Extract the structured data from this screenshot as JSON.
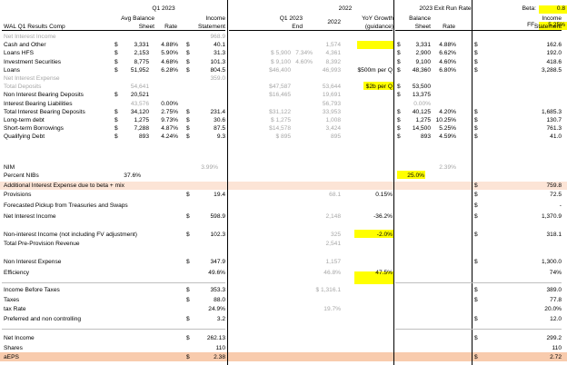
{
  "colors": {
    "highlight_row": "#fce4d6",
    "yellow": "#ffff00",
    "peach": "#f8cbad",
    "grey_text": "#a6a6a6"
  },
  "header": {
    "q1_2023": "Q1 2023",
    "q1_2023_end_group": "Q1 2023",
    "col_2022": "2022",
    "exit_run_rate": "2023 Exit Run Rate",
    "beta_label": "Beta:",
    "beta_value": "0.8",
    "ff_label": "FF:",
    "ff_value": "5.25%",
    "sub_title": "WAL Q1 Results Comp",
    "avg_balance_1": "Avg Balance",
    "avg_balance_2": "Sheet",
    "rate": "Rate",
    "income_1": "Income",
    "income_2": "Statement",
    "end": "End",
    "year_2022": "2022",
    "yoy_1": "YoY Growth",
    "yoy_2": "(guidance)",
    "bal_1": "Balance",
    "bal_2": "Sheet",
    "rate2": "Rate",
    "inc2_1": "Income",
    "inc2_2": "Statement"
  },
  "rows": [
    {
      "label": "Net Interest Income",
      "grey": true,
      "c5": "968.9"
    },
    {
      "label": "Cash and Other",
      "s1": "$",
      "c2": "3,331",
      "c3": "4.88%",
      "s4": "$",
      "c5": "40.1",
      "c8": "1,574",
      "s9": "$",
      "c9": "3,331",
      "c10": "4.88%",
      "s11": "$",
      "c11": "162.6"
    },
    {
      "label": "Loans HFS",
      "s1": "$",
      "c2": "2,153",
      "c3": "5.90%",
      "s4": "$",
      "c5": "31.3",
      "c6": "$ 5,900",
      "c7": "7.34%",
      "c8": "4,361",
      "s9": "$",
      "c9": "2,900",
      "c10": "6.62%",
      "s11": "$",
      "c11": "192.0"
    },
    {
      "label": "Investment Securities",
      "s1": "$",
      "c2": "8,775",
      "c3": "4.68%",
      "s4": "$",
      "c5": "101.3",
      "c6": "$ 9,100",
      "c7": "4.60%",
      "c8": "8,392",
      "s9": "$",
      "c9": "9,100",
      "c10": "4.60%",
      "s11": "$",
      "c11": "418.6"
    },
    {
      "label": "Loans",
      "s1": "$",
      "c2": "51,952",
      "c3": "6.28%",
      "s4": "$",
      "c5": "804.5",
      "c6": "$46,400",
      "c8": "46,993",
      "yoy": "$500m per Q",
      "s9": "$",
      "c9": "48,360",
      "c10": "6.80%",
      "s11": "$",
      "c11": "3,288.5"
    },
    {
      "label": "Net Interest Expense",
      "grey": true,
      "c5": "359.0"
    },
    {
      "label": "Total Deposits",
      "grey": true,
      "c2": "54,641",
      "c6": "$47,587",
      "c8": "53,644",
      "yoy": "$2b per Q",
      "s9": "$",
      "c9": "53,500"
    },
    {
      "label": "Non Interest Bearing Deposits",
      "s1": "$",
      "c2": "20,521",
      "c6": "$16,465",
      "c8": "19,691",
      "s9": "$",
      "c9": "13,375"
    },
    {
      "label": "Interest Bearing Liabilities",
      "c2": "43,576",
      "g2": true,
      "c3": "0.00%",
      "c8": "56,793",
      "g9": true,
      "c9": "0.00%"
    },
    {
      "label": "Total Interest Bearing Deposits",
      "s1": "$",
      "c2": "34,120",
      "c3": "2.75%",
      "s4": "$",
      "c5": "231.4",
      "c6": "$31,122",
      "c8": "33,953",
      "s9": "$",
      "c9": "40,125",
      "c10": "4.20%",
      "s11": "$",
      "c11": "1,685.3"
    },
    {
      "label": "Long-term debt",
      "s1": "$",
      "c2": "1,275",
      "c3": "9.73%",
      "s4": "$",
      "c5": "30.6",
      "c6": "$ 1,275",
      "c8": "1,008",
      "s9": "$",
      "c9": "1,275",
      "c10": "10.25%",
      "s11": "$",
      "c11": "130.7"
    },
    {
      "label": "Short-term Borrowings",
      "s1": "$",
      "c2": "7,288",
      "c3": "4.87%",
      "s4": "$",
      "c5": "87.5",
      "c6": "$14,578",
      "c8": "3,424",
      "s9": "$",
      "c9": "14,500",
      "c10": "5.25%",
      "s11": "$",
      "c11": "761.3"
    },
    {
      "label": "Qualifying Debt",
      "s1": "$",
      "c2": "893",
      "c3": "4.24%",
      "s4": "$",
      "c5": "9.3",
      "c6": "$ 895",
      "c8": "895",
      "s9": "$",
      "c9": "893",
      "c10": "4.59%",
      "s11": "$",
      "c11": "41.0"
    }
  ],
  "nim": {
    "label": "NIM",
    "value": "3.99%",
    "exit": "2.39%"
  },
  "percent_nibs": {
    "label": "Percent NIBs",
    "value": "37.6%",
    "exit": "25.0%"
  },
  "addl": {
    "label": "Additional Interest Expense due to beta + mix",
    "s": "$",
    "value": "759.8"
  },
  "rows2": [
    {
      "label": "Provisions",
      "s4": "$",
      "c5": "19.4",
      "c8": "68.1",
      "yoy": "0.15%",
      "s11": "$",
      "c11": "72.5"
    },
    {
      "label": "Forecasted Pickup from Treasuries and Swaps",
      "s11": "$",
      "c11": "-"
    },
    {
      "label": "Net Interest Income",
      "s4": "$",
      "c5": "598.9",
      "c8": "2,148",
      "yoy": "-36.2%",
      "s11": "$",
      "c11": "1,370.9"
    }
  ],
  "rows3": [
    {
      "label": "Non-interest Income (not including FV adjustment)",
      "s4": "$",
      "c5": "102.3",
      "c8": "325",
      "yoy": "-2.0%",
      "s11": "$",
      "c11": "318.1"
    },
    {
      "label": "Total Pre-Provision Revenue",
      "c8": "2,541"
    }
  ],
  "rows4": [
    {
      "label": "Non Interest Expense",
      "s4": "$",
      "c5": "347.9",
      "c8": "1,157",
      "s11": "$",
      "c11": "1,300.0"
    },
    {
      "label": "Efficiency",
      "c5": "49.6%",
      "c8": "46.8%",
      "yoy": "47.5%",
      "c11": "74%"
    }
  ],
  "rows5": [
    {
      "label": "Income Before Taxes",
      "s4": "$",
      "c5": "353.3",
      "c8": "$ 1,316.1",
      "s11": "$",
      "c11": "389.0"
    },
    {
      "label": "Taxes",
      "s4": "$",
      "c5": "88.0",
      "s11": "$",
      "c11": "77.8"
    },
    {
      "label": "tax Rate",
      "c5": "24.9%",
      "c8": "19.7%",
      "c11": "20.0%"
    },
    {
      "label": "Preferred and non controlling",
      "s4": "$",
      "c5": "3.2",
      "s11": "$",
      "c11": "12.0"
    }
  ],
  "rows6": [
    {
      "label": "Net Income",
      "s4": "$",
      "c5": "262.13",
      "s11": "$",
      "c11": "299.2"
    },
    {
      "label": "Shares",
      "c5": "110",
      "c11": "110"
    },
    {
      "label": "aEPS",
      "s4": "$",
      "c5": "2.38",
      "s11": "$",
      "c11": "2.72"
    }
  ]
}
